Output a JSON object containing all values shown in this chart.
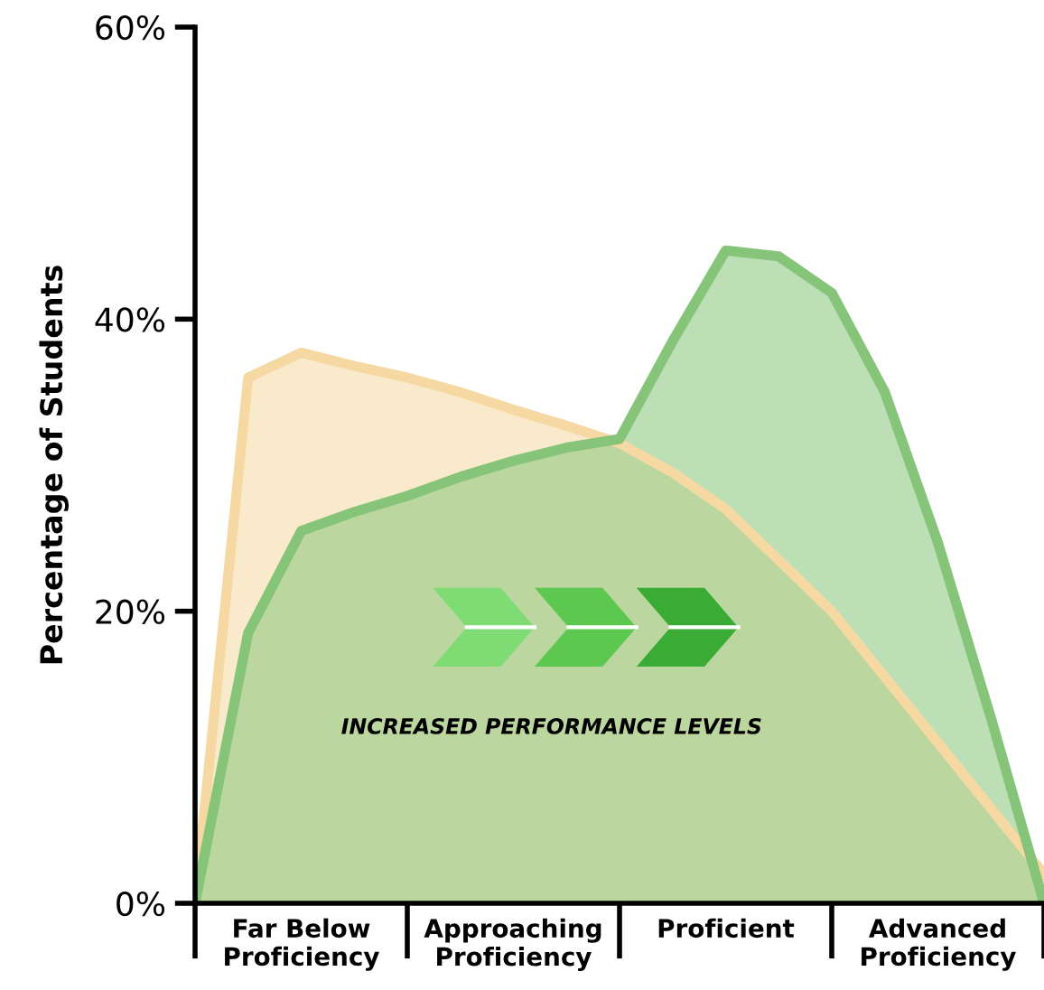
{
  "chart_data": {
    "type": "area",
    "ylabel": "Percentage of Students",
    "categories": [
      null,
      null,
      "Far Below\nProficiency",
      null,
      null,
      null,
      "Approaching\nProficiency",
      null,
      null,
      null,
      "Proficient",
      null,
      null,
      null,
      "Advanced\nProficiency",
      null,
      null
    ],
    "ylim": [
      0,
      60
    ],
    "yticks": [
      {
        "value": 0,
        "label": "0%"
      },
      {
        "value": 20,
        "label": "20%"
      },
      {
        "value": 40,
        "label": "40%"
      },
      {
        "value": 60,
        "label": "60%"
      }
    ],
    "series": [
      {
        "color": "#f6d9a2",
        "values": [
          0,
          36,
          37.7,
          36.8,
          36,
          35,
          33.8,
          32.7,
          31.5,
          29.5,
          27,
          23.5,
          20,
          15.5,
          11,
          6.5,
          2
        ]
      },
      {
        "color": "#86c47a",
        "values": [
          0,
          18.5,
          25.5,
          26.8,
          27.9,
          29.2,
          30.3,
          31.2,
          31.8,
          38.5,
          44.7,
          44.3,
          41.8,
          35,
          24.7,
          12.7,
          0
        ]
      }
    ],
    "annotations": [
      "INCREASED PERFORMANCE LEVELS"
    ],
    "grid": false,
    "legend": false
  }
}
